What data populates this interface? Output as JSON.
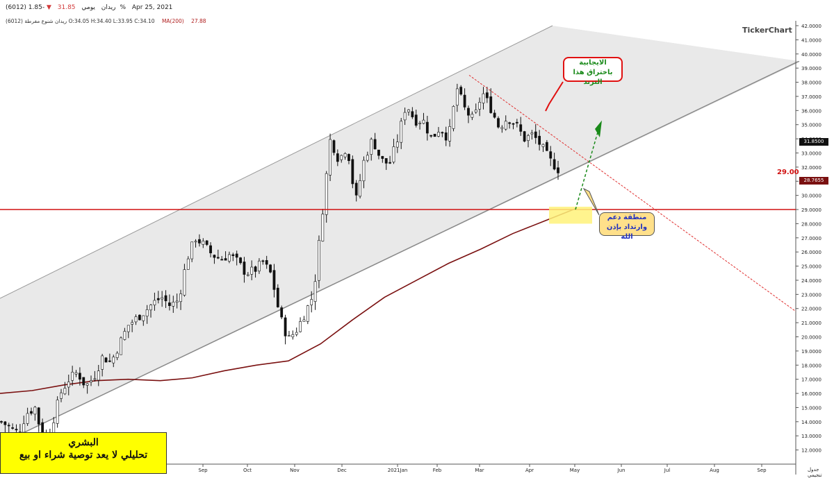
{
  "header": {
    "symbol": "(6012) ريدان",
    "period": "يومي",
    "price": "31.85",
    "arrow": "▼",
    "change": "-1.85%",
    "date": "Apr 25, 2021",
    "ohlc": "ريدان شنوع مفرطة (6012) O:34.05 H:34.40 L:33.95 C:34.10",
    "ma_label": "MA(200)",
    "ma_value": "27.88"
  },
  "logo": "TickerChart",
  "last_price_tag": "31.8500",
  "ma_tag": "28.7655",
  "level_label": "29.00",
  "corner_label": "جدول تنجيمي",
  "callouts": {
    "breakout_line1": "الايجابية",
    "breakout_line2": "باختراق هذا الترند",
    "support_line1": "منطقة دعم",
    "support_line2": "وارتداد بإذن الله"
  },
  "disclaimer": {
    "line1": "البشري",
    "line2": "تحليلي لا يعد توصية شراء او بيع"
  },
  "colors": {
    "level": "#d01010",
    "ma": "#7a1010",
    "up": "#ffffff",
    "down": "#111111",
    "channel": "#e9e9e9"
  },
  "chart_data": {
    "type": "candlestick",
    "y_axis": {
      "min": 11.0,
      "max": 42.0,
      "ticks": [
        12,
        13,
        14,
        15,
        16,
        17,
        18,
        19,
        20,
        21,
        22,
        23,
        24,
        25,
        26,
        27,
        28,
        29,
        30,
        31,
        32,
        33,
        34,
        35,
        36,
        37,
        38,
        39,
        40,
        41,
        42
      ],
      "tick_format": "0.0000",
      "position": "right"
    },
    "x_axis": {
      "months": [
        "Sep",
        "Oct",
        "Nov",
        "Dec",
        "2021Jan",
        "Feb",
        "Mar",
        "Apr",
        "May",
        "Jun",
        "Jul",
        "Aug",
        "Sep"
      ]
    },
    "close_path": [
      14,
      13.6,
      13.2,
      14.6,
      15,
      12.5,
      13.8,
      16,
      17,
      17.5,
      16.5,
      17.2,
      18.6,
      18.2,
      19.5,
      20.8,
      21.3,
      21.8,
      22.4,
      22.8,
      22.2,
      22.6,
      25.5,
      27,
      26.5,
      25.8,
      25.5,
      25.8,
      25.3,
      24.5,
      24.7,
      25.3,
      24.4,
      21.5,
      19.8,
      20.5,
      21.7,
      23,
      28.5,
      34,
      32.5,
      33.5,
      29.5,
      32.5,
      34,
      32.5,
      32.2,
      34,
      36.5,
      35.3,
      35.3,
      34,
      34.8,
      34,
      37.6,
      36,
      35.3,
      37.3,
      36.2,
      34.8,
      35.5,
      35,
      34,
      34.3,
      33.5,
      32.5,
      31.85
    ],
    "levels": [
      {
        "label": "29.00",
        "value": 29.0,
        "style": "horizontal"
      }
    ],
    "ma200": [
      16.0,
      16.2,
      16.6,
      16.9,
      17.0,
      16.9,
      17.1,
      17.6,
      18.0,
      18.3,
      19.5,
      21.2,
      22.8,
      24.0,
      25.2,
      26.2,
      27.3,
      28.2,
      29.1
    ],
    "annotations": [
      "upper channel",
      "lower channel",
      "descending trendline",
      "support zone"
    ]
  }
}
